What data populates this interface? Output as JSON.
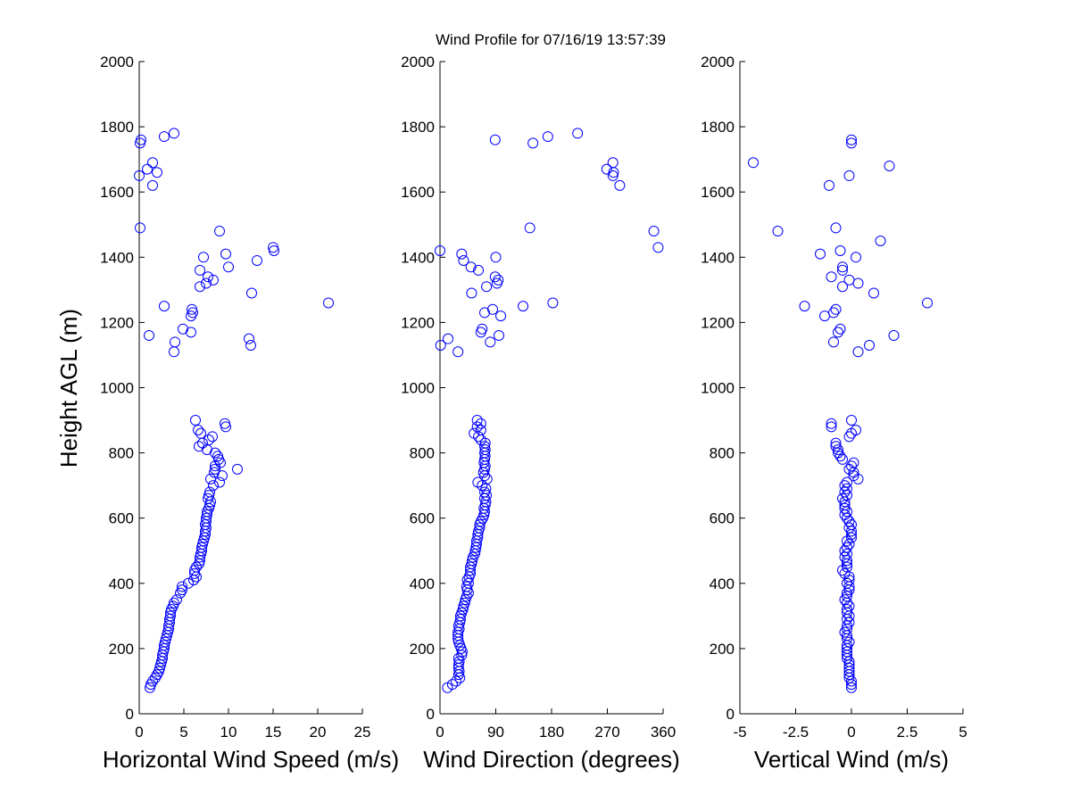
{
  "title": "Wind Profile for  07/16/19 13:57:39",
  "ylabel": "Height AGL (m)",
  "colors": {
    "marker": "#0000ff",
    "axis": "#000000"
  },
  "chart_data": [
    {
      "type": "scatter",
      "xlabel": "Horizontal Wind Speed (m/s)",
      "xlim": [
        0,
        25
      ],
      "ylim": [
        0,
        2000
      ],
      "xticks": [
        "0",
        "5",
        "10",
        "15",
        "20",
        "25"
      ],
      "yticks": [
        "0",
        "200",
        "400",
        "600",
        "800",
        "1000",
        "1200",
        "1400",
        "1600",
        "1800",
        "2000"
      ],
      "grid": false,
      "points": [
        [
          1.2,
          80
        ],
        [
          1.3,
          90
        ],
        [
          1.5,
          100
        ],
        [
          1.8,
          110
        ],
        [
          2.0,
          120
        ],
        [
          2.2,
          130
        ],
        [
          2.3,
          140
        ],
        [
          2.4,
          150
        ],
        [
          2.5,
          160
        ],
        [
          2.6,
          170
        ],
        [
          2.6,
          180
        ],
        [
          2.7,
          190
        ],
        [
          2.8,
          200
        ],
        [
          2.8,
          210
        ],
        [
          2.9,
          220
        ],
        [
          3.0,
          230
        ],
        [
          3.1,
          240
        ],
        [
          3.2,
          250
        ],
        [
          3.3,
          260
        ],
        [
          3.3,
          270
        ],
        [
          3.4,
          280
        ],
        [
          3.4,
          290
        ],
        [
          3.5,
          300
        ],
        [
          3.5,
          310
        ],
        [
          3.6,
          320
        ],
        [
          3.8,
          330
        ],
        [
          3.9,
          340
        ],
        [
          4.2,
          350
        ],
        [
          4.6,
          370
        ],
        [
          4.8,
          380
        ],
        [
          4.8,
          390
        ],
        [
          5.5,
          400
        ],
        [
          6.1,
          410
        ],
        [
          6.4,
          420
        ],
        [
          6.2,
          430
        ],
        [
          6.2,
          440
        ],
        [
          6.4,
          450
        ],
        [
          6.7,
          460
        ],
        [
          6.8,
          470
        ],
        [
          6.8,
          480
        ],
        [
          6.9,
          490
        ],
        [
          7.0,
          500
        ],
        [
          7.0,
          510
        ],
        [
          7.1,
          520
        ],
        [
          7.2,
          530
        ],
        [
          7.3,
          540
        ],
        [
          7.4,
          550
        ],
        [
          7.4,
          560
        ],
        [
          7.5,
          570
        ],
        [
          7.4,
          580
        ],
        [
          7.5,
          590
        ],
        [
          7.5,
          600
        ],
        [
          7.6,
          610
        ],
        [
          7.6,
          620
        ],
        [
          7.8,
          630
        ],
        [
          7.9,
          640
        ],
        [
          8.0,
          650
        ],
        [
          7.7,
          660
        ],
        [
          7.8,
          670
        ],
        [
          7.9,
          680
        ],
        [
          8.3,
          700
        ],
        [
          9.0,
          710
        ],
        [
          9.3,
          730
        ],
        [
          8.0,
          720
        ],
        [
          8.4,
          740
        ],
        [
          8.5,
          760
        ],
        [
          8.5,
          750
        ],
        [
          9.1,
          770
        ],
        [
          8.9,
          780
        ],
        [
          8.8,
          790
        ],
        [
          8.5,
          800
        ],
        [
          7.6,
          810
        ],
        [
          6.7,
          820
        ],
        [
          7.1,
          830
        ],
        [
          7.8,
          840
        ],
        [
          8.2,
          850
        ],
        [
          6.9,
          860
        ],
        [
          6.6,
          870
        ],
        [
          9.7,
          880
        ],
        [
          9.6,
          890
        ],
        [
          6.3,
          900
        ],
        [
          11.0,
          750
        ],
        [
          3.9,
          1110
        ],
        [
          4.0,
          1140
        ],
        [
          12.5,
          1130
        ],
        [
          12.3,
          1150
        ],
        [
          1.1,
          1160
        ],
        [
          5.8,
          1170
        ],
        [
          4.9,
          1180
        ],
        [
          5.8,
          1220
        ],
        [
          5.9,
          1240
        ],
        [
          6.0,
          1230
        ],
        [
          2.8,
          1250
        ],
        [
          21.2,
          1260
        ],
        [
          12.6,
          1290
        ],
        [
          6.8,
          1310
        ],
        [
          7.5,
          1320
        ],
        [
          7.7,
          1340
        ],
        [
          8.3,
          1330
        ],
        [
          6.8,
          1360
        ],
        [
          10.0,
          1370
        ],
        [
          13.2,
          1390
        ],
        [
          7.2,
          1400
        ],
        [
          9.7,
          1410
        ],
        [
          15.1,
          1420
        ],
        [
          15.0,
          1430
        ],
        [
          9.0,
          1480
        ],
        [
          0.1,
          1490
        ],
        [
          1.5,
          1620
        ],
        [
          0.0,
          1650
        ],
        [
          2.0,
          1660
        ],
        [
          0.9,
          1670
        ],
        [
          1.5,
          1690
        ],
        [
          0.1,
          1750
        ],
        [
          0.2,
          1760
        ],
        [
          2.8,
          1770
        ],
        [
          3.9,
          1780
        ]
      ]
    },
    {
      "type": "scatter",
      "xlabel": "Wind Direction (degrees)",
      "xlim": [
        0,
        360
      ],
      "ylim": [
        0,
        2000
      ],
      "xticks": [
        "0",
        "90",
        "180",
        "270",
        "360"
      ],
      "yticks": [
        "0",
        "200",
        "400",
        "600",
        "800",
        "1000",
        "1200",
        "1400",
        "1600",
        "1800",
        "2000"
      ],
      "grid": false,
      "points": [
        [
          12,
          80
        ],
        [
          20,
          90
        ],
        [
          26,
          100
        ],
        [
          32,
          110
        ],
        [
          30,
          120
        ],
        [
          31,
          130
        ],
        [
          30,
          140
        ],
        [
          30,
          150
        ],
        [
          31,
          160
        ],
        [
          30,
          170
        ],
        [
          35,
          180
        ],
        [
          36,
          190
        ],
        [
          34,
          200
        ],
        [
          32,
          210
        ],
        [
          30,
          220
        ],
        [
          29,
          230
        ],
        [
          29,
          240
        ],
        [
          29,
          250
        ],
        [
          31,
          260
        ],
        [
          30,
          270
        ],
        [
          32,
          280
        ],
        [
          33,
          290
        ],
        [
          33,
          300
        ],
        [
          35,
          310
        ],
        [
          37,
          320
        ],
        [
          38,
          330
        ],
        [
          40,
          340
        ],
        [
          41,
          350
        ],
        [
          43,
          360
        ],
        [
          46,
          370
        ],
        [
          44,
          380
        ],
        [
          43,
          390
        ],
        [
          46,
          400
        ],
        [
          44,
          410
        ],
        [
          47,
          420
        ],
        [
          49,
          430
        ],
        [
          49,
          440
        ],
        [
          49,
          450
        ],
        [
          51,
          460
        ],
        [
          52,
          470
        ],
        [
          53,
          480
        ],
        [
          56,
          490
        ],
        [
          57,
          500
        ],
        [
          58,
          510
        ],
        [
          59,
          520
        ],
        [
          59,
          530
        ],
        [
          61,
          540
        ],
        [
          61,
          550
        ],
        [
          62,
          560
        ],
        [
          64,
          570
        ],
        [
          64,
          580
        ],
        [
          66,
          590
        ],
        [
          69,
          600
        ],
        [
          71,
          610
        ],
        [
          72,
          620
        ],
        [
          71,
          630
        ],
        [
          73,
          640
        ],
        [
          74,
          650
        ],
        [
          72,
          660
        ],
        [
          75,
          670
        ],
        [
          72,
          680
        ],
        [
          74,
          690
        ],
        [
          68,
          700
        ],
        [
          61,
          710
        ],
        [
          76,
          720
        ],
        [
          72,
          730
        ],
        [
          70,
          740
        ],
        [
          72,
          750
        ],
        [
          73,
          760
        ],
        [
          71,
          770
        ],
        [
          72,
          780
        ],
        [
          73,
          790
        ],
        [
          72,
          800
        ],
        [
          73,
          810
        ],
        [
          72,
          820
        ],
        [
          73,
          830
        ],
        [
          66,
          840
        ],
        [
          62,
          850
        ],
        [
          55,
          860
        ],
        [
          66,
          870
        ],
        [
          60,
          880
        ],
        [
          66,
          890
        ],
        [
          60,
          900
        ],
        [
          1,
          1130
        ],
        [
          13,
          1150
        ],
        [
          29,
          1110
        ],
        [
          81,
          1140
        ],
        [
          95,
          1160
        ],
        [
          66,
          1170
        ],
        [
          68,
          1180
        ],
        [
          72,
          1230
        ],
        [
          98,
          1220
        ],
        [
          85,
          1240
        ],
        [
          134,
          1250
        ],
        [
          182,
          1260
        ],
        [
          51,
          1290
        ],
        [
          75,
          1310
        ],
        [
          92,
          1320
        ],
        [
          94,
          1330
        ],
        [
          89,
          1340
        ],
        [
          62,
          1360
        ],
        [
          50,
          1370
        ],
        [
          38,
          1390
        ],
        [
          35,
          1410
        ],
        [
          90,
          1400
        ],
        [
          0,
          1420
        ],
        [
          345,
          1480
        ],
        [
          352,
          1430
        ],
        [
          145,
          1490
        ],
        [
          290,
          1620
        ],
        [
          279,
          1650
        ],
        [
          280,
          1660
        ],
        [
          269,
          1670
        ],
        [
          279,
          1690
        ],
        [
          150,
          1750
        ],
        [
          89,
          1760
        ],
        [
          174,
          1770
        ],
        [
          222,
          1780
        ]
      ]
    },
    {
      "type": "scatter",
      "xlabel": "Vertical Wind (m/s)",
      "xlim": [
        -5,
        5
      ],
      "ylim": [
        0,
        2000
      ],
      "xticks": [
        "-5",
        "-2.5",
        "0",
        "2.5",
        "5"
      ],
      "yticks": [
        "0",
        "200",
        "400",
        "600",
        "800",
        "1000",
        "1200",
        "1400",
        "1600",
        "1800",
        "2000"
      ],
      "grid": false,
      "points": [
        [
          0.0,
          80
        ],
        [
          0.0,
          90
        ],
        [
          0.0,
          100
        ],
        [
          -0.1,
          110
        ],
        [
          -0.1,
          120
        ],
        [
          -0.1,
          130
        ],
        [
          -0.1,
          140
        ],
        [
          -0.1,
          150
        ],
        [
          -0.1,
          160
        ],
        [
          -0.2,
          170
        ],
        [
          -0.2,
          180
        ],
        [
          -0.2,
          190
        ],
        [
          -0.2,
          200
        ],
        [
          -0.2,
          210
        ],
        [
          -0.1,
          220
        ],
        [
          -0.2,
          230
        ],
        [
          -0.2,
          240
        ],
        [
          -0.3,
          250
        ],
        [
          -0.2,
          260
        ],
        [
          -0.2,
          270
        ],
        [
          -0.1,
          280
        ],
        [
          -0.2,
          290
        ],
        [
          -0.1,
          300
        ],
        [
          -0.2,
          310
        ],
        [
          -0.2,
          320
        ],
        [
          -0.1,
          330
        ],
        [
          -0.2,
          340
        ],
        [
          -0.3,
          350
        ],
        [
          -0.2,
          360
        ],
        [
          -0.2,
          370
        ],
        [
          -0.1,
          380
        ],
        [
          -0.1,
          390
        ],
        [
          -0.2,
          400
        ],
        [
          -0.1,
          410
        ],
        [
          -0.1,
          420
        ],
        [
          -0.3,
          430
        ],
        [
          -0.4,
          440
        ],
        [
          -0.2,
          450
        ],
        [
          -0.2,
          460
        ],
        [
          -0.2,
          470
        ],
        [
          -0.3,
          480
        ],
        [
          -0.2,
          490
        ],
        [
          -0.3,
          500
        ],
        [
          -0.2,
          510
        ],
        [
          -0.1,
          520
        ],
        [
          -0.2,
          530
        ],
        [
          0.0,
          540
        ],
        [
          0.0,
          550
        ],
        [
          0.0,
          560
        ],
        [
          -0.1,
          570
        ],
        [
          0.0,
          580
        ],
        [
          -0.1,
          590
        ],
        [
          -0.2,
          600
        ],
        [
          -0.3,
          610
        ],
        [
          -0.2,
          620
        ],
        [
          -0.3,
          630
        ],
        [
          -0.3,
          640
        ],
        [
          -0.3,
          650
        ],
        [
          -0.4,
          660
        ],
        [
          -0.2,
          670
        ],
        [
          -0.3,
          680
        ],
        [
          -0.2,
          690
        ],
        [
          -0.3,
          700
        ],
        [
          -0.2,
          710
        ],
        [
          0.3,
          720
        ],
        [
          0.1,
          730
        ],
        [
          0.1,
          740
        ],
        [
          -0.1,
          750
        ],
        [
          0.0,
          760
        ],
        [
          0.1,
          770
        ],
        [
          -0.4,
          780
        ],
        [
          -0.5,
          790
        ],
        [
          -0.6,
          800
        ],
        [
          -0.6,
          810
        ],
        [
          -0.7,
          820
        ],
        [
          -0.7,
          830
        ],
        [
          -0.1,
          850
        ],
        [
          0.0,
          860
        ],
        [
          0.2,
          870
        ],
        [
          -0.9,
          880
        ],
        [
          -0.9,
          890
        ],
        [
          0.0,
          900
        ],
        [
          -0.8,
          1140
        ],
        [
          0.3,
          1110
        ],
        [
          0.8,
          1130
        ],
        [
          1.9,
          1160
        ],
        [
          -0.6,
          1170
        ],
        [
          -0.5,
          1180
        ],
        [
          -1.2,
          1220
        ],
        [
          -0.8,
          1230
        ],
        [
          -0.7,
          1240
        ],
        [
          -2.1,
          1250
        ],
        [
          3.4,
          1260
        ],
        [
          1.0,
          1290
        ],
        [
          -0.4,
          1310
        ],
        [
          0.3,
          1320
        ],
        [
          -0.1,
          1330
        ],
        [
          -0.9,
          1340
        ],
        [
          -0.4,
          1360
        ],
        [
          -0.4,
          1370
        ],
        [
          0.2,
          1400
        ],
        [
          -1.4,
          1410
        ],
        [
          -0.5,
          1420
        ],
        [
          1.3,
          1450
        ],
        [
          -3.3,
          1480
        ],
        [
          -0.7,
          1490
        ],
        [
          -1.0,
          1620
        ],
        [
          -0.1,
          1650
        ],
        [
          1.7,
          1680
        ],
        [
          -4.4,
          1690
        ],
        [
          0.0,
          1750
        ],
        [
          0.0,
          1760
        ]
      ]
    }
  ]
}
